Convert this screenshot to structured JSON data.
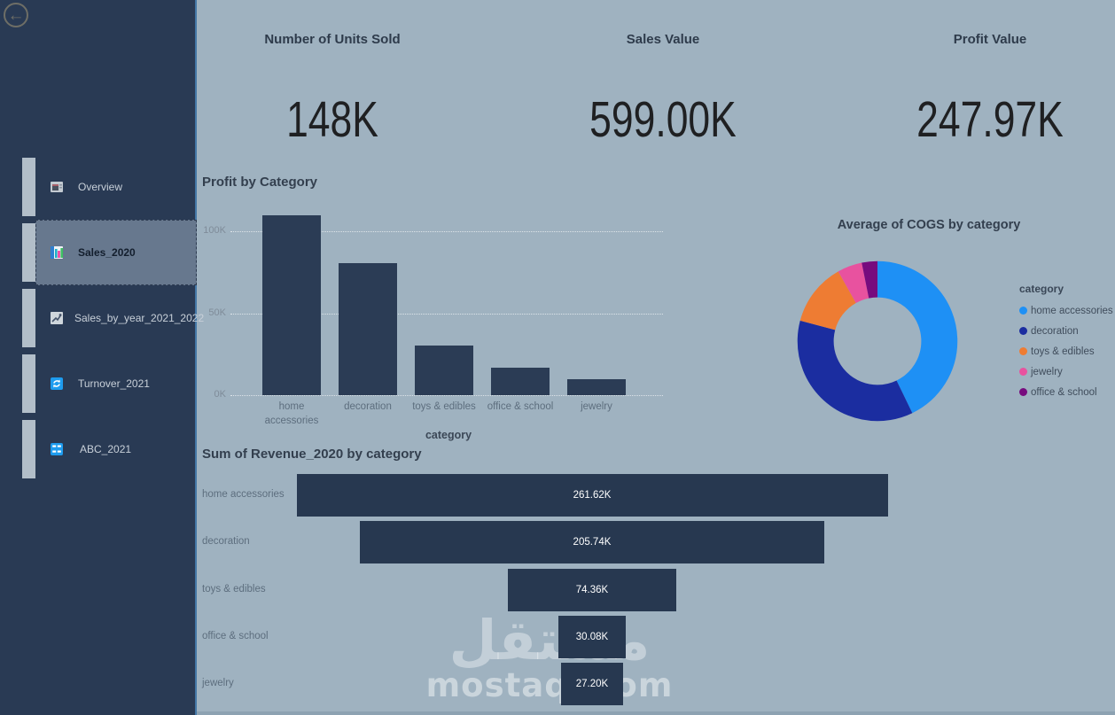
{
  "sidebar": {
    "back_icon": "arrow-left",
    "items": [
      {
        "label": "Overview",
        "icon": "report-window-icon",
        "selected": false
      },
      {
        "label": "Sales_2020",
        "icon": "column-chart-icon",
        "selected": true
      },
      {
        "label": "Sales_by_year_2021_2022",
        "icon": "line-chart-icon",
        "selected": false
      },
      {
        "label": "Turnover_2021",
        "icon": "sync-icon",
        "selected": false
      },
      {
        "label": "ABC_2021",
        "icon": "grid-letters-icon",
        "selected": false
      }
    ]
  },
  "kpis": [
    {
      "title": "Number of Units Sold",
      "value": "148K"
    },
    {
      "title": "Sales Value",
      "value": "599.00K"
    },
    {
      "title": "Profit Value",
      "value": "247.97K"
    }
  ],
  "chart_data": [
    {
      "type": "bar",
      "title": "Profit by Category",
      "categories": [
        "home accessories",
        "decoration",
        "toys & edibles",
        "office & school",
        "jewelry"
      ],
      "values": [
        110000,
        80500,
        30500,
        17000,
        10000
      ],
      "xlabel": "category",
      "ylabel": "",
      "yticks": [
        "0K",
        "50K",
        "100K"
      ],
      "ytick_values": [
        0,
        50000,
        100000
      ],
      "ylim": [
        0,
        120000
      ],
      "grid": "horizontal-dotted",
      "bar_color": "#2b3c55"
    },
    {
      "type": "pie",
      "subtype": "donut",
      "title": "Average of COGS by category",
      "legend_title": "category",
      "legend_position": "right",
      "categories": [
        "home accessories",
        "decoration",
        "toys & edibles",
        "jewelry",
        "office & school"
      ],
      "values_pct": [
        42.8,
        36.3,
        12.7,
        5.0,
        3.2
      ],
      "colors": [
        "#1e90f5",
        "#1b2da0",
        "#ee7c33",
        "#e8529f",
        "#770b7e"
      ],
      "donut_hole_ratio": 0.55
    },
    {
      "type": "funnel",
      "title": "Sum of Revenue_2020 by category",
      "categories": [
        "home accessories",
        "decoration",
        "toys & edibles",
        "office & school",
        "jewelry"
      ],
      "values": [
        261620,
        205740,
        74360,
        30080,
        27200
      ],
      "labels": [
        "261.62K",
        "205.74K",
        "74.36K",
        "30.08K",
        "27.20K"
      ],
      "bar_color": "#273850"
    }
  ],
  "watermark": {
    "arabic": "مستقل",
    "latin": "mostaql.com"
  },
  "colors": {
    "sidebar_bg": "#293a54",
    "sidebar_selected_bg": "#67788e",
    "sidebar_handle": "#b2bec9",
    "main_bg": "#9fb2c0",
    "bar_fill": "#2b3c55",
    "accent_blue": "#1e9cef",
    "separator": "#4377a6"
  }
}
